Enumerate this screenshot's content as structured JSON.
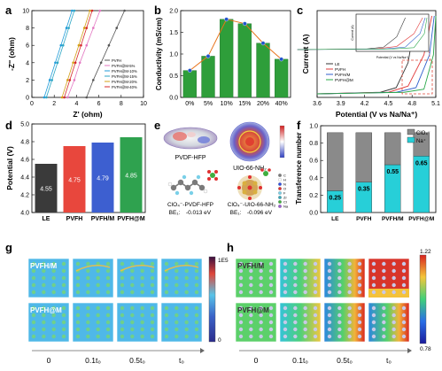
{
  "figure": {
    "panel_labels": [
      "a",
      "b",
      "c",
      "d",
      "e",
      "f",
      "g",
      "h"
    ]
  },
  "chart_data": [
    {
      "panel": "a",
      "type": "line",
      "xlabel": "Z' (ohm)",
      "ylabel": "-Z'' (ohm)",
      "xlim": [
        0,
        10
      ],
      "ylim": [
        0,
        10
      ],
      "xticks": [
        "0",
        "2",
        "4",
        "6",
        "8",
        "10"
      ],
      "yticks": [
        "0",
        "2",
        "4",
        "6",
        "8",
        "10"
      ],
      "series": [
        {
          "name": "PVFH",
          "color": "#555555",
          "points": [
            [
              4.9,
              0
            ],
            [
              5.5,
              2
            ],
            [
              6.2,
              4
            ],
            [
              6.9,
              6
            ],
            [
              7.6,
              8
            ],
            [
              8.3,
              10
            ]
          ]
        },
        {
          "name": "PVFH@M-5%",
          "color": "#e377c2",
          "points": [
            [
              3.2,
              0
            ],
            [
              3.8,
              2
            ],
            [
              4.3,
              4
            ],
            [
              4.9,
              6
            ],
            [
              5.5,
              8
            ],
            [
              6.1,
              10
            ]
          ]
        },
        {
          "name": "PVFH@M-10%",
          "color": "#1f9bd9",
          "points": [
            [
              1.1,
              0
            ],
            [
              1.6,
              2
            ],
            [
              2.1,
              4
            ],
            [
              2.6,
              6
            ],
            [
              3.1,
              8
            ],
            [
              3.6,
              10
            ]
          ]
        },
        {
          "name": "PVFH@M-15%",
          "color": "#2ca6c4",
          "points": [
            [
              1.3,
              0
            ],
            [
              1.8,
              2
            ],
            [
              2.3,
              4
            ],
            [
              2.8,
              6
            ],
            [
              3.3,
              8
            ],
            [
              3.8,
              10
            ]
          ]
        },
        {
          "name": "PVFH@M-20%",
          "color": "#d4a017",
          "points": [
            [
              2.7,
              0
            ],
            [
              3.2,
              2
            ],
            [
              3.7,
              4
            ],
            [
              4.2,
              6
            ],
            [
              4.7,
              8
            ],
            [
              5.2,
              10
            ]
          ]
        },
        {
          "name": "PVFH@M-40%",
          "color": "#d62728",
          "points": [
            [
              2.9,
              0
            ],
            [
              3.4,
              2
            ],
            [
              3.9,
              4
            ],
            [
              4.4,
              6
            ],
            [
              4.9,
              8
            ],
            [
              5.4,
              10
            ]
          ]
        }
      ]
    },
    {
      "panel": "b",
      "type": "bar",
      "xlabel": "",
      "ylabel": "Conductivity (mS/cm)",
      "categories": [
        "0%",
        "5%",
        "10%",
        "15%",
        "20%",
        "40%"
      ],
      "values": [
        0.62,
        0.95,
        1.8,
        1.7,
        1.25,
        0.88
      ],
      "ylim": [
        0,
        2.0
      ],
      "yticks": [
        "0.0",
        "0.5",
        "1.0",
        "1.5",
        "2.0"
      ],
      "bar_color": "#2e9e3a",
      "line_color": "#e8731a",
      "marker_color": "#2255cc"
    },
    {
      "panel": "c",
      "type": "line",
      "xlabel": "Potential (V vs Na/Na⁺)",
      "ylabel": "Current (A)",
      "xlim": [
        3.6,
        5.1
      ],
      "xticks": [
        "3.6",
        "3.9",
        "4.2",
        "4.5",
        "4.8",
        "5.1"
      ],
      "ytick_labels": [],
      "inset_xlabel": "Potential (V vs Na/Na⁺)",
      "inset_ylabel": "Current (A)",
      "series": [
        {
          "name": "LE",
          "color": "#333333",
          "points": [
            [
              3.6,
              0
            ],
            [
              4.4,
              0.02
            ],
            [
              4.6,
              0.08
            ],
            [
              4.75,
              0.4
            ],
            [
              4.85,
              1.0
            ]
          ]
        },
        {
          "name": "PVFH",
          "color": "#e23b3b",
          "points": [
            [
              3.6,
              0
            ],
            [
              4.5,
              0.02
            ],
            [
              4.75,
              0.1
            ],
            [
              4.95,
              0.5
            ],
            [
              5.05,
              1.0
            ]
          ]
        },
        {
          "name": "PVFH/M",
          "color": "#2f5fcc",
          "points": [
            [
              3.6,
              0
            ],
            [
              4.6,
              0.02
            ],
            [
              4.85,
              0.08
            ],
            [
              5.02,
              0.5
            ],
            [
              5.08,
              1.0
            ]
          ]
        },
        {
          "name": "PVFH@M",
          "color": "#2aa84a",
          "points": [
            [
              3.6,
              0
            ],
            [
              4.7,
              0.02
            ],
            [
              4.95,
              0.06
            ],
            [
              5.07,
              0.5
            ],
            [
              5.1,
              1.0
            ]
          ]
        }
      ]
    },
    {
      "panel": "d",
      "type": "bar",
      "xlabel": "",
      "ylabel": "Potential (V)",
      "categories": [
        "LE",
        "PVFH",
        "PVFH/M",
        "PVFH@M"
      ],
      "values": [
        4.55,
        4.75,
        4.79,
        4.85
      ],
      "data_labels": [
        "4.55",
        "4.75",
        "4.79",
        "4.85"
      ],
      "ylim": [
        4.0,
        5.0
      ],
      "yticks": [
        "4.0",
        "4.2",
        "4.4",
        "4.6",
        "4.8",
        "5.0"
      ],
      "colors": [
        "#3a3a3a",
        "#e8473d",
        "#3d5fd0",
        "#2fa24f"
      ]
    },
    {
      "panel": "f",
      "type": "bar",
      "xlabel": "",
      "ylabel": "Transference number",
      "categories": [
        "LE",
        "PVFH",
        "PVFH/M",
        "PVFH@M"
      ],
      "values": [
        0.25,
        0.35,
        0.55,
        0.65
      ],
      "data_labels": [
        "0.25",
        "0.35",
        "0.55",
        "0.65"
      ],
      "ylim": [
        0,
        1.0
      ],
      "yticks": [
        "0.0",
        "0.2",
        "0.4",
        "0.6",
        "0.8",
        "1.0"
      ],
      "legend": [
        "ClO₄⁻",
        "Na⁺"
      ],
      "colors": {
        "na": "#27cfd8",
        "clo4": "#8a8a8a"
      }
    }
  ],
  "panel_e": {
    "labels": [
      "PVDF-HFP",
      "UIO-66-NH₂",
      "ClO₄⁻-PVDF-HFP",
      "ClO₄⁻-UIO-66-NH₂"
    ],
    "be_prefix": "BE₁:",
    "be_values": [
      "-0.013 eV",
      "-0.096 eV"
    ],
    "atom_legend": [
      "C",
      "H",
      "N",
      "O",
      "F",
      "Zr",
      "Cl",
      "Na"
    ]
  },
  "panel_g": {
    "row_labels": [
      "PVFH/M",
      "PVFH@M"
    ],
    "colorbar_max": "1E5",
    "colorbar_min": "0"
  },
  "panel_h": {
    "row_labels": [
      "PVFH/M",
      "PVFH@M"
    ],
    "colorbar_max": "1.22",
    "colorbar_min": "0.78"
  },
  "time_labels": [
    "0",
    "0.1t₀",
    "0.5t₀",
    "t₀"
  ]
}
